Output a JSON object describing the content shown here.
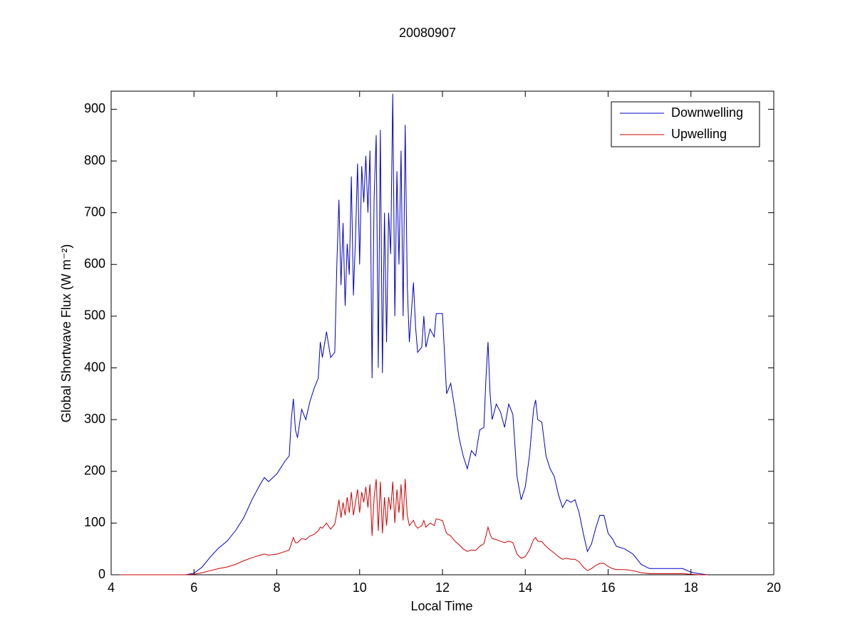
{
  "chart_data": {
    "type": "line",
    "title": "20080907",
    "xlabel": "Local Time",
    "ylabel": "Global Shortwave Flux (W m⁻²)",
    "xlim": [
      4,
      20
    ],
    "xticks": [
      4,
      6,
      8,
      10,
      12,
      14,
      16,
      18,
      20
    ],
    "ylim": [
      0,
      935
    ],
    "yticks": [
      0,
      100,
      200,
      300,
      400,
      500,
      600,
      700,
      800,
      900
    ],
    "legend": "upper right",
    "x": [
      4.2,
      5.0,
      5.8,
      6.0,
      6.2,
      6.4,
      6.6,
      6.8,
      7.0,
      7.2,
      7.4,
      7.6,
      7.7,
      7.8,
      8.0,
      8.2,
      8.3,
      8.35,
      8.4,
      8.45,
      8.5,
      8.6,
      8.7,
      8.8,
      8.9,
      9.0,
      9.05,
      9.1,
      9.2,
      9.3,
      9.4,
      9.45,
      9.5,
      9.55,
      9.6,
      9.65,
      9.7,
      9.75,
      9.8,
      9.85,
      9.9,
      9.95,
      10.0,
      10.05,
      10.1,
      10.15,
      10.2,
      10.25,
      10.3,
      10.35,
      10.4,
      10.45,
      10.5,
      10.55,
      10.6,
      10.65,
      10.7,
      10.75,
      10.8,
      10.85,
      10.9,
      10.95,
      11.0,
      11.05,
      11.1,
      11.15,
      11.2,
      11.3,
      11.35,
      11.4,
      11.5,
      11.55,
      11.6,
      11.7,
      11.8,
      11.85,
      12.0,
      12.1,
      12.2,
      12.3,
      12.4,
      12.5,
      12.6,
      12.7,
      12.8,
      12.9,
      13.0,
      13.05,
      13.1,
      13.15,
      13.2,
      13.3,
      13.4,
      13.5,
      13.6,
      13.7,
      13.8,
      13.9,
      14.0,
      14.1,
      14.2,
      14.25,
      14.3,
      14.4,
      14.5,
      14.6,
      14.7,
      14.8,
      14.9,
      15.0,
      15.1,
      15.2,
      15.3,
      15.4,
      15.5,
      15.6,
      15.7,
      15.8,
      15.9,
      16.0,
      16.1,
      16.2,
      16.4,
      16.6,
      16.8,
      17.0,
      17.4,
      17.8,
      18.0,
      18.2,
      18.4
    ],
    "series": [
      {
        "name": "Downwelling",
        "color": "#0000c8",
        "values": [
          0,
          0,
          0,
          3,
          15,
          35,
          52,
          65,
          85,
          110,
          145,
          175,
          188,
          180,
          195,
          220,
          230,
          300,
          340,
          280,
          265,
          320,
          300,
          335,
          360,
          380,
          450,
          420,
          470,
          420,
          430,
          600,
          725,
          560,
          680,
          520,
          640,
          580,
          770,
          540,
          650,
          795,
          600,
          790,
          720,
          810,
          700,
          820,
          380,
          730,
          850,
          400,
          860,
          390,
          700,
          450,
          700,
          620,
          930,
          500,
          780,
          600,
          820,
          500,
          870,
          560,
          450,
          565,
          480,
          430,
          440,
          500,
          440,
          475,
          460,
          505,
          505,
          350,
          370,
          320,
          265,
          230,
          205,
          240,
          230,
          280,
          285,
          380,
          450,
          350,
          300,
          330,
          315,
          285,
          330,
          310,
          190,
          145,
          170,
          230,
          320,
          338,
          300,
          295,
          230,
          205,
          190,
          155,
          130,
          145,
          140,
          145,
          120,
          80,
          45,
          60,
          90,
          115,
          115,
          80,
          70,
          55,
          50,
          40,
          20,
          12,
          12,
          12,
          5,
          2,
          0
        ]
      },
      {
        "name": "Upwelling",
        "color": "#d00000",
        "values": [
          0,
          0,
          0,
          1,
          4,
          8,
          12,
          15,
          20,
          27,
          33,
          38,
          40,
          38,
          40,
          45,
          48,
          60,
          72,
          62,
          62,
          70,
          68,
          75,
          78,
          85,
          92,
          90,
          100,
          88,
          98,
          120,
          145,
          110,
          140,
          115,
          150,
          120,
          160,
          115,
          140,
          165,
          120,
          160,
          140,
          170,
          130,
          175,
          75,
          150,
          185,
          85,
          180,
          80,
          150,
          95,
          150,
          125,
          180,
          100,
          165,
          120,
          175,
          105,
          185,
          115,
          95,
          105,
          95,
          90,
          95,
          105,
          92,
          100,
          95,
          108,
          105,
          80,
          75,
          65,
          58,
          50,
          45,
          48,
          47,
          55,
          60,
          75,
          92,
          78,
          70,
          68,
          65,
          62,
          65,
          62,
          40,
          32,
          35,
          48,
          68,
          72,
          65,
          64,
          55,
          48,
          42,
          35,
          30,
          32,
          30,
          30,
          25,
          15,
          8,
          12,
          18,
          22,
          22,
          16,
          12,
          10,
          10,
          8,
          4,
          2,
          2,
          2,
          1,
          0,
          0
        ]
      }
    ]
  }
}
